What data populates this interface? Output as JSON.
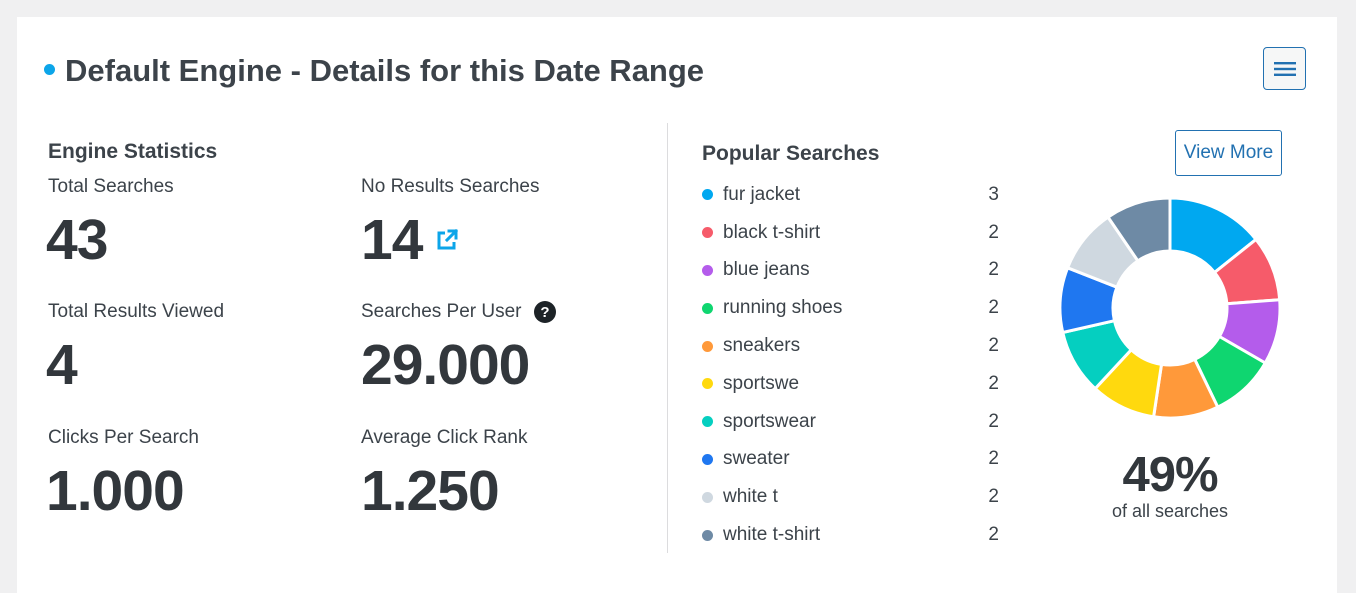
{
  "header": {
    "title": "Default Engine - Details for this Date Range",
    "accent_color": "#0ca5e9",
    "menu_icon": "hamburger-icon"
  },
  "engine_stats": {
    "title": "Engine Statistics",
    "total_searches": {
      "label": "Total Searches",
      "value": "43"
    },
    "no_results_searches": {
      "label": "No Results Searches",
      "value": "14",
      "icon": "external-link-icon"
    },
    "total_results_viewed": {
      "label": "Total Results Viewed",
      "value": "4"
    },
    "searches_per_user": {
      "label": "Searches Per User",
      "value": "29.000",
      "icon": "help-icon"
    },
    "clicks_per_search": {
      "label": "Clicks Per Search",
      "value": "1.000"
    },
    "average_click_rank": {
      "label": "Average Click Rank",
      "value": "1.250"
    }
  },
  "popular_searches": {
    "title": "Popular Searches",
    "view_more_label": "View More",
    "items": [
      {
        "term": "fur jacket",
        "count": "3",
        "color": "#00a8f0"
      },
      {
        "term": "black t-shirt",
        "count": "2",
        "color": "#f65b6a"
      },
      {
        "term": "blue jeans",
        "count": "2",
        "color": "#b45ceb"
      },
      {
        "term": "running shoes",
        "count": "2",
        "color": "#0fd670"
      },
      {
        "term": "sneakers",
        "count": "2",
        "color": "#ff993a"
      },
      {
        "term": "sportswe",
        "count": "2",
        "color": "#ffd90e"
      },
      {
        "term": "sportswear",
        "count": "2",
        "color": "#05cfc0"
      },
      {
        "term": "sweater",
        "count": "2",
        "color": "#1f77f0"
      },
      {
        "term": "white t",
        "count": "2",
        "color": "#cfd8e0"
      },
      {
        "term": "white t-shirt",
        "count": "2",
        "color": "#6e8aa5"
      }
    ],
    "percent_label": "49%",
    "percent_caption": "of all searches"
  }
}
